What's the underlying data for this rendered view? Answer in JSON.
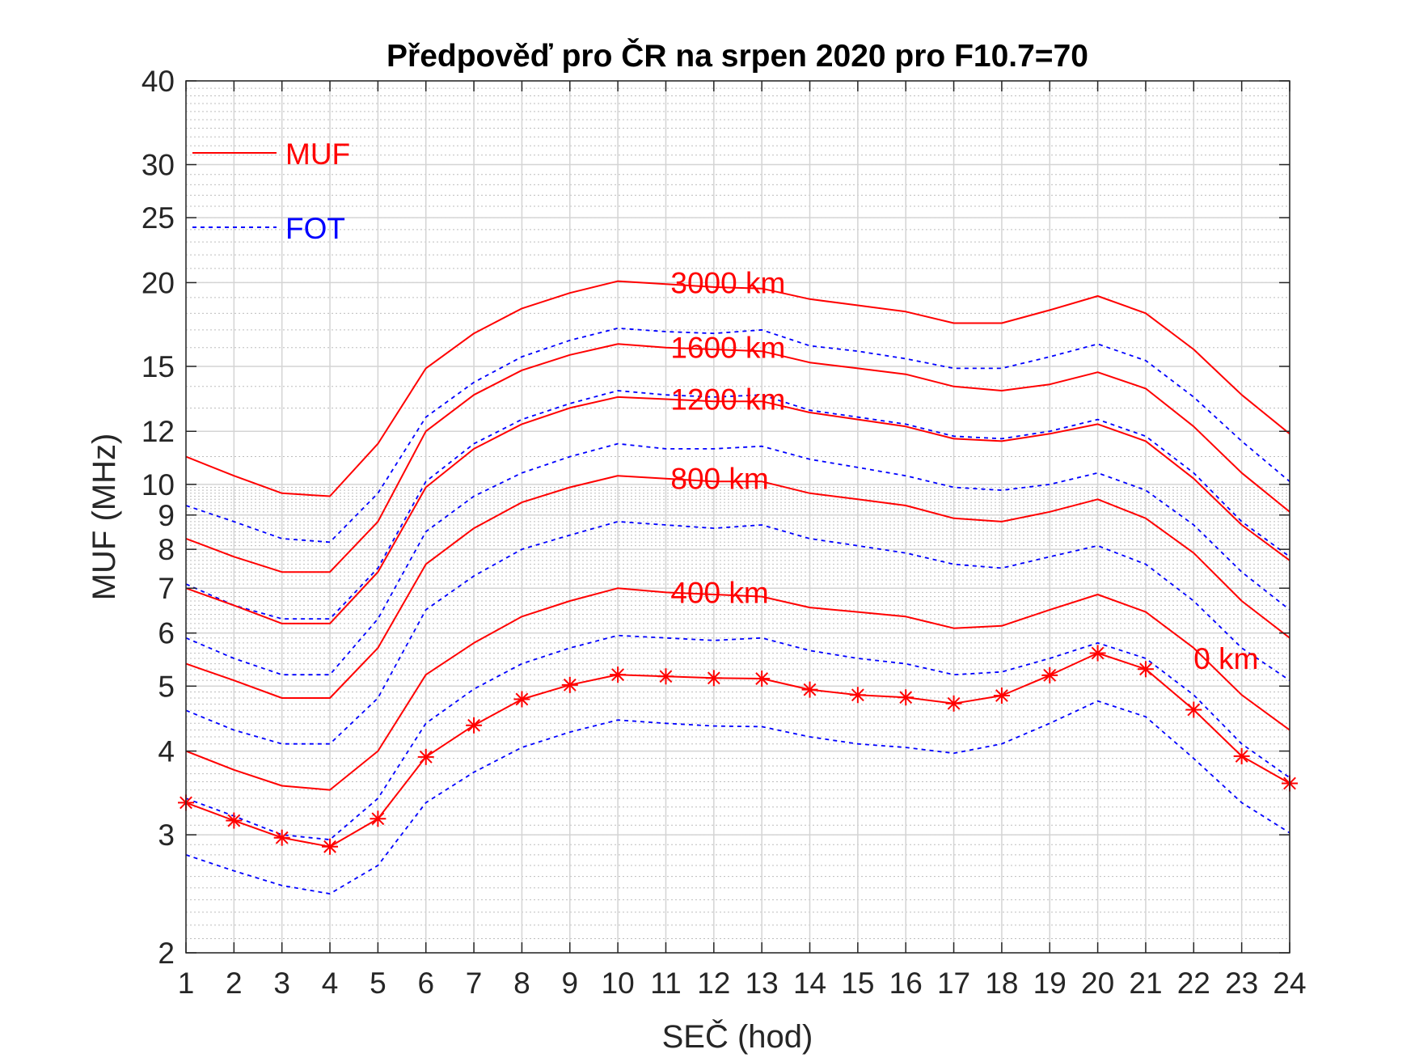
{
  "chart_data": {
    "type": "line",
    "title": "Předpověď pro ČR na srpen 2020 pro F10.7=70",
    "xlabel": "SEČ (hod)",
    "ylabel": "MUF (MHz)",
    "xlim": [
      1,
      24
    ],
    "ylim": [
      2,
      40
    ],
    "yscale": "log",
    "grid": true,
    "minor_grid": true,
    "x_ticks": [
      "1",
      "2",
      "3",
      "4",
      "5",
      "6",
      "7",
      "8",
      "9",
      "10",
      "11",
      "12",
      "13",
      "14",
      "15",
      "16",
      "17",
      "18",
      "19",
      "20",
      "21",
      "22",
      "23",
      "24"
    ],
    "y_tick_values": [
      2,
      3,
      4,
      5,
      6,
      7,
      8,
      9,
      10,
      12,
      15,
      20,
      25,
      30,
      40
    ],
    "y_tick_labels": [
      "2",
      "3",
      "4",
      "5",
      "6",
      "7",
      "8",
      "9",
      "10",
      "12",
      "15",
      "20",
      "25",
      "30",
      "40"
    ],
    "legend": {
      "position": "top-left",
      "entries": [
        {
          "label": "MUF",
          "color": "#ff0000",
          "style": "solid"
        },
        {
          "label": "FOT",
          "color": "#0000ff",
          "style": "dashed"
        }
      ]
    },
    "x": [
      1,
      2,
      3,
      4,
      5,
      6,
      7,
      8,
      9,
      10,
      11,
      12,
      13,
      14,
      15,
      16,
      17,
      18,
      19,
      20,
      21,
      22,
      23,
      24
    ],
    "series": [
      {
        "kind": "MUF",
        "distance": "3000 km",
        "color": "#ff0000",
        "style": "solid",
        "values": [
          11.0,
          10.3,
          9.7,
          9.6,
          11.5,
          14.9,
          16.8,
          18.3,
          19.3,
          20.1,
          19.9,
          19.7,
          19.6,
          18.9,
          18.5,
          18.1,
          17.4,
          17.4,
          18.2,
          19.1,
          18.0,
          15.9,
          13.6,
          11.9
        ]
      },
      {
        "kind": "FOT",
        "distance": "3000 km",
        "color": "#0000ff",
        "style": "dashed",
        "values": [
          9.3,
          8.8,
          8.3,
          8.2,
          9.7,
          12.6,
          14.2,
          15.5,
          16.4,
          17.1,
          16.9,
          16.8,
          17.0,
          16.1,
          15.8,
          15.4,
          14.9,
          14.9,
          15.5,
          16.2,
          15.3,
          13.5,
          11.6,
          10.1
        ]
      },
      {
        "kind": "MUF",
        "distance": "1600 km",
        "color": "#ff0000",
        "style": "solid",
        "values": [
          8.3,
          7.8,
          7.4,
          7.4,
          8.8,
          12.0,
          13.6,
          14.8,
          15.6,
          16.2,
          16.0,
          15.9,
          15.8,
          15.2,
          14.9,
          14.6,
          14.0,
          13.8,
          14.1,
          14.7,
          13.9,
          12.2,
          10.4,
          9.1
        ]
      },
      {
        "kind": "FOT",
        "distance": "1600 km",
        "color": "#0000ff",
        "style": "dashed",
        "values": [
          7.1,
          6.6,
          6.3,
          6.3,
          7.5,
          10.1,
          11.5,
          12.5,
          13.2,
          13.8,
          13.6,
          13.5,
          13.6,
          12.9,
          12.6,
          12.3,
          11.8,
          11.7,
          12.0,
          12.5,
          11.8,
          10.4,
          8.8,
          7.8
        ]
      },
      {
        "kind": "MUF",
        "distance": "1200 km",
        "color": "#ff0000",
        "style": "solid",
        "values": [
          7.0,
          6.6,
          6.2,
          6.2,
          7.4,
          9.9,
          11.3,
          12.3,
          13.0,
          13.5,
          13.4,
          13.3,
          13.3,
          12.8,
          12.5,
          12.2,
          11.7,
          11.6,
          11.9,
          12.3,
          11.6,
          10.2,
          8.7,
          7.7
        ]
      },
      {
        "kind": "FOT",
        "distance": "1200 km",
        "color": "#0000ff",
        "style": "dashed",
        "values": [
          5.9,
          5.5,
          5.2,
          5.2,
          6.3,
          8.5,
          9.6,
          10.4,
          11.0,
          11.5,
          11.3,
          11.3,
          11.4,
          10.9,
          10.6,
          10.3,
          9.9,
          9.8,
          10.0,
          10.4,
          9.8,
          8.7,
          7.4,
          6.5
        ]
      },
      {
        "kind": "MUF",
        "distance": "800 km",
        "color": "#ff0000",
        "style": "solid",
        "values": [
          5.4,
          5.1,
          4.8,
          4.8,
          5.7,
          7.6,
          8.6,
          9.4,
          9.9,
          10.3,
          10.2,
          10.1,
          10.1,
          9.7,
          9.5,
          9.3,
          8.9,
          8.8,
          9.1,
          9.5,
          8.9,
          7.9,
          6.7,
          5.9
        ]
      },
      {
        "kind": "FOT",
        "distance": "800 km",
        "color": "#0000ff",
        "style": "dashed",
        "values": [
          4.6,
          4.3,
          4.1,
          4.1,
          4.8,
          6.5,
          7.3,
          8.0,
          8.4,
          8.8,
          8.7,
          8.6,
          8.7,
          8.3,
          8.1,
          7.9,
          7.6,
          7.5,
          7.8,
          8.1,
          7.6,
          6.7,
          5.7,
          5.1
        ]
      },
      {
        "kind": "MUF",
        "distance": "400 km",
        "color": "#ff0000",
        "style": "solid",
        "values": [
          4.0,
          3.75,
          3.55,
          3.5,
          4.0,
          5.2,
          5.8,
          6.35,
          6.7,
          7.0,
          6.9,
          6.85,
          6.8,
          6.55,
          6.45,
          6.35,
          6.1,
          6.15,
          6.5,
          6.85,
          6.45,
          5.7,
          4.85,
          4.3
        ]
      },
      {
        "kind": "FOT",
        "distance": "400 km",
        "color": "#0000ff",
        "style": "dashed",
        "values": [
          3.4,
          3.2,
          3.0,
          2.95,
          3.4,
          4.4,
          4.95,
          5.4,
          5.7,
          5.95,
          5.9,
          5.85,
          5.9,
          5.65,
          5.5,
          5.4,
          5.2,
          5.25,
          5.5,
          5.8,
          5.5,
          4.85,
          4.1,
          3.65
        ]
      },
      {
        "kind": "MUF",
        "distance": "0 km",
        "color": "#ff0000",
        "style": "solid-star",
        "values": [
          3.35,
          3.15,
          2.97,
          2.88,
          3.17,
          3.92,
          4.37,
          4.78,
          5.02,
          5.2,
          5.17,
          5.14,
          5.13,
          4.94,
          4.85,
          4.81,
          4.71,
          4.84,
          5.19,
          5.6,
          5.3,
          4.61,
          3.93,
          3.58
        ]
      },
      {
        "kind": "FOT",
        "distance": "0 km",
        "color": "#0000ff",
        "style": "dashed",
        "values": [
          2.8,
          2.65,
          2.52,
          2.45,
          2.7,
          3.35,
          3.72,
          4.05,
          4.27,
          4.45,
          4.4,
          4.36,
          4.35,
          4.2,
          4.1,
          4.05,
          3.97,
          4.1,
          4.4,
          4.75,
          4.5,
          3.9,
          3.35,
          3.02
        ]
      }
    ],
    "annotations": [
      {
        "text": "3000 km",
        "x": 11.1,
        "y": 20.0,
        "color": "#ff0000"
      },
      {
        "text": "1600 km",
        "x": 11.1,
        "y": 16.0,
        "color": "#ff0000"
      },
      {
        "text": "1200 km",
        "x": 11.1,
        "y": 13.4,
        "color": "#ff0000"
      },
      {
        "text": "800 km",
        "x": 11.1,
        "y": 10.2,
        "color": "#ff0000"
      },
      {
        "text": "400 km",
        "x": 11.1,
        "y": 6.9,
        "color": "#ff0000"
      },
      {
        "text": "0 km",
        "x": 22.0,
        "y": 5.5,
        "color": "#ff0000"
      }
    ]
  }
}
